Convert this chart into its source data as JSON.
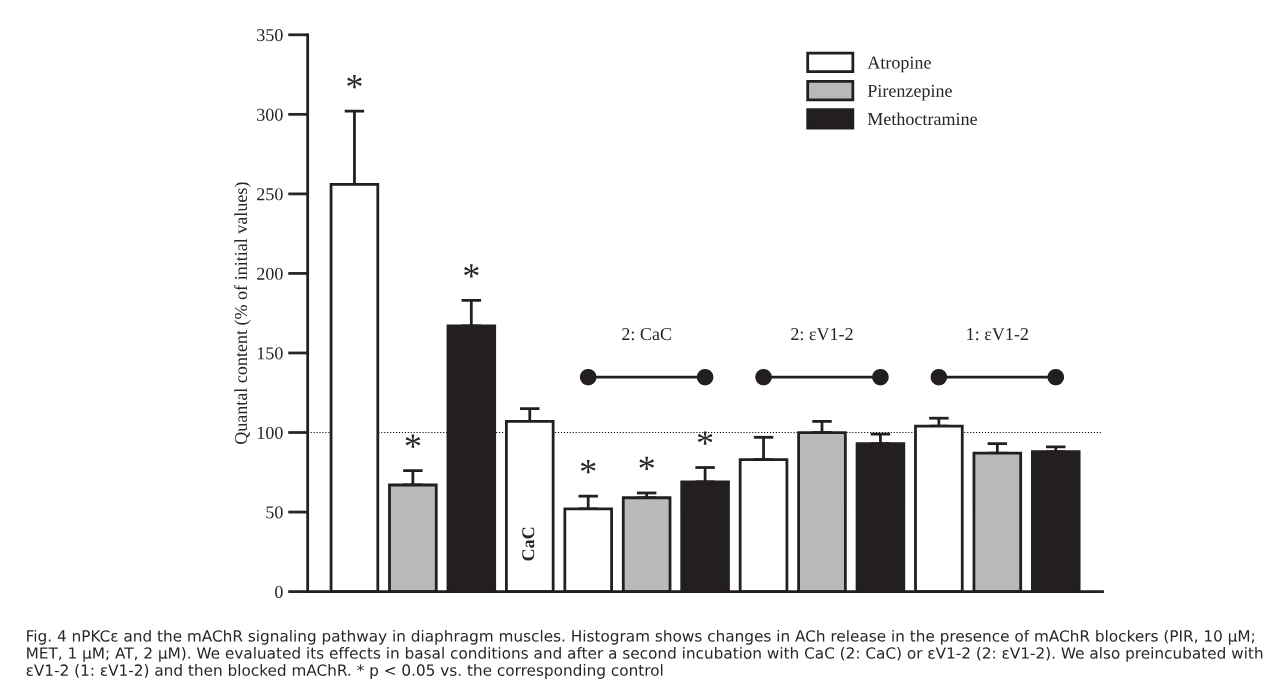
{
  "chart_data": {
    "type": "bar",
    "ylabel": "Quantal content (% of initial values)",
    "categories": [
      null,
      null,
      null,
      "CaC",
      null,
      null,
      null,
      null,
      null,
      null,
      null,
      null,
      null
    ],
    "series": [
      {
        "name": "Atropine",
        "color": "#ffffff",
        "values": [
          256,
          null,
          null,
          null,
          52,
          null,
          null,
          83,
          null,
          null,
          104,
          null,
          null
        ],
        "errors": [
          [
            256,
            302
          ],
          null,
          null,
          null,
          [
            52,
            60
          ],
          null,
          null,
          [
            83,
            97
          ],
          null,
          null,
          [
            104,
            109
          ],
          null,
          null
        ],
        "value_labels": [
          "*",
          null,
          null,
          null,
          "*",
          null,
          null,
          null,
          null,
          null,
          null,
          null,
          null
        ]
      },
      {
        "name": "Pirenzepine",
        "color": "#b8b9bb",
        "values": [
          null,
          67,
          null,
          null,
          null,
          59,
          null,
          null,
          100,
          null,
          null,
          87,
          null
        ],
        "errors": [
          null,
          [
            67,
            76
          ],
          null,
          null,
          null,
          [
            59,
            62
          ],
          null,
          null,
          [
            100,
            107
          ],
          null,
          null,
          [
            87,
            93
          ],
          null
        ],
        "value_labels": [
          null,
          "*",
          null,
          null,
          null,
          "*",
          null,
          null,
          null,
          null,
          null,
          null,
          null
        ]
      },
      {
        "name": "Methoctramine",
        "color": "#231f20",
        "values": [
          null,
          null,
          167,
          null,
          null,
          null,
          69,
          null,
          null,
          93,
          null,
          null,
          88
        ],
        "errors": [
          null,
          null,
          [
            167,
            183
          ],
          null,
          null,
          null,
          [
            69,
            78
          ],
          null,
          null,
          [
            93,
            99
          ],
          null,
          null,
          [
            88,
            91
          ]
        ],
        "value_labels": [
          null,
          null,
          "*",
          null,
          null,
          null,
          "*",
          null,
          null,
          null,
          null,
          null,
          null
        ]
      },
      {
        "color": "#ffffff",
        "values": [
          null,
          null,
          null,
          107,
          null,
          null,
          null,
          null,
          null,
          null,
          null,
          null,
          null
        ],
        "errors": [
          null,
          null,
          null,
          [
            107,
            115
          ],
          null,
          null,
          null,
          null,
          null,
          null,
          null,
          null,
          null
        ]
      }
    ],
    "ylim": [
      0,
      350
    ],
    "yticks": [
      0,
      50,
      100,
      150,
      200,
      250,
      300,
      350
    ],
    "ref_lines": [
      {
        "axis": "y",
        "value": 100,
        "color": "#000000",
        "line_style": "dotted"
      }
    ],
    "legend": "top right",
    "grid": false,
    "annotations": [
      "2: CaC",
      "2: εV1-2",
      "1: εV1-2",
      "Fig. 4 nPKCε and the mAChR signaling pathway in diaphragm muscles. Histogram shows changes in ACh release in the presence of mAChR blockers (PIR, 10 μM; MET, 1 μM; AT, 2 μM). We evaluated its effects in basal conditions and after a second incubation with CaC (2: CaC) or εV1-2 (2: εV1-2). We also preincubated with εV1-2 (1: εV1-2) and then blocked mAChR. * p < 0.05 vs. the corresponding control"
    ]
  }
}
